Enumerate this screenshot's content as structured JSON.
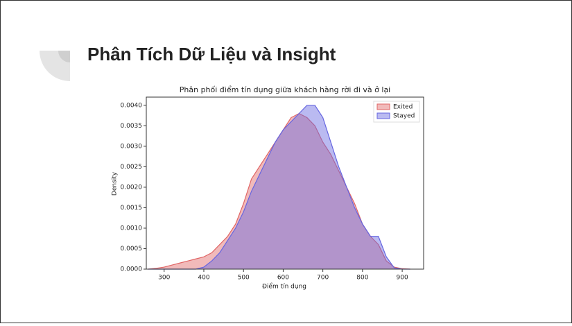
{
  "slide_title": "Phân Tích Dữ Liệu và Insight",
  "chart_data": {
    "type": "area",
    "title": "Phân phối điểm tín dụng giữa khách hàng rời đi và ở lại",
    "xlabel": "Điểm tín dụng",
    "ylabel": "Density",
    "x": [
      260,
      280,
      300,
      320,
      340,
      360,
      380,
      400,
      420,
      440,
      460,
      480,
      500,
      520,
      540,
      560,
      580,
      600,
      620,
      640,
      660,
      680,
      700,
      720,
      740,
      760,
      780,
      800,
      820,
      840,
      860,
      880,
      900,
      920
    ],
    "series": [
      {
        "name": "Exited",
        "color": "#e06666",
        "values": [
          0,
          2e-05,
          5e-05,
          0.0001,
          0.00015,
          0.0002,
          0.00025,
          0.0003,
          0.0004,
          0.0006,
          0.0008,
          0.0011,
          0.0016,
          0.0022,
          0.0025,
          0.0028,
          0.0031,
          0.0034,
          0.0037,
          0.0038,
          0.0037,
          0.0035,
          0.0031,
          0.0028,
          0.0024,
          0.002,
          0.0016,
          0.0011,
          0.0008,
          0.0006,
          0.0002,
          5e-05,
          1e-05,
          0
        ]
      },
      {
        "name": "Stayed",
        "color": "#6666e0",
        "values": [
          0,
          0,
          0,
          0,
          0,
          0,
          0,
          5e-05,
          0.0002,
          0.0004,
          0.0007,
          0.001,
          0.0014,
          0.0019,
          0.0023,
          0.0027,
          0.0031,
          0.0034,
          0.0036,
          0.0038,
          0.004,
          0.004,
          0.0037,
          0.0031,
          0.0025,
          0.002,
          0.0015,
          0.0011,
          0.0008,
          0.0008,
          0.0003,
          3e-05,
          0,
          0
        ]
      }
    ],
    "xlim": [
      255,
      954
    ],
    "ylim": [
      0,
      0.0042
    ],
    "xticks": [
      300,
      400,
      500,
      600,
      700,
      800,
      900
    ],
    "yticks": [
      {
        "value": 0,
        "label": "0.0000"
      },
      {
        "value": 0.0005,
        "label": "0.0005"
      },
      {
        "value": 0.001,
        "label": "0.0010"
      },
      {
        "value": 0.0015,
        "label": "0.0015"
      },
      {
        "value": 0.002,
        "label": "0.0020"
      },
      {
        "value": 0.0025,
        "label": "0.0025"
      },
      {
        "value": 0.003,
        "label": "0.0030"
      },
      {
        "value": 0.0035,
        "label": "0.0035"
      },
      {
        "value": 0.004,
        "label": "0.0040"
      }
    ],
    "legend": "upper right"
  }
}
